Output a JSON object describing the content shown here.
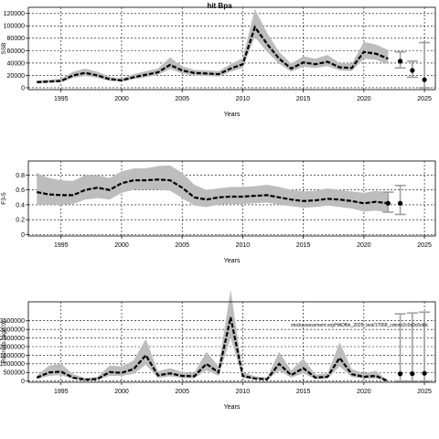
{
  "title": "hit Bpa",
  "annotation": "stockassessment.org/HADfbk_2025_test/17068_cdnmr2c0x0c6oblc",
  "chart_data": [
    {
      "type": "line",
      "ylabel": "SSB",
      "xlabel": "Years",
      "xlim": [
        1992.3,
        2025.9
      ],
      "ylim": [
        -3000,
        130000
      ],
      "xticks": [
        1995,
        2000,
        2005,
        2010,
        2015,
        2020,
        2025
      ],
      "yticks": [
        0,
        20000,
        40000,
        60000,
        80000,
        100000,
        120000
      ],
      "grid": true,
      "series": [
        {
          "x": [
            1993,
            1994,
            1995,
            1996,
            1997,
            1998,
            1999,
            2000,
            2001,
            2002,
            2003,
            2004,
            2005,
            2006,
            2007,
            2008,
            2009,
            2010,
            2011,
            2012,
            2013,
            2014,
            2015,
            2016,
            2017,
            2018,
            2019,
            2020,
            2021,
            2022
          ],
          "values": [
            9000,
            10000,
            11000,
            20000,
            24000,
            20000,
            14000,
            12000,
            17000,
            21000,
            25000,
            37000,
            28000,
            24000,
            23000,
            22000,
            31000,
            38000,
            98000,
            71000,
            47000,
            31000,
            41000,
            38000,
            42000,
            33000,
            32000,
            58000,
            55000,
            47000
          ],
          "lower": [
            7000,
            8000,
            9000,
            16000,
            19000,
            16000,
            11000,
            10000,
            14000,
            17000,
            21000,
            30000,
            23000,
            20000,
            19000,
            18000,
            26000,
            32000,
            82000,
            58000,
            39000,
            26000,
            34000,
            32000,
            35000,
            28000,
            27000,
            47000,
            45000,
            38000
          ],
          "upper": [
            12000,
            13000,
            15000,
            26000,
            31000,
            26000,
            18000,
            15000,
            22000,
            27000,
            31000,
            49000,
            35000,
            29000,
            28000,
            27000,
            38000,
            48000,
            127000,
            89000,
            58000,
            39000,
            51000,
            47000,
            53000,
            40000,
            39000,
            74000,
            70000,
            61000
          ]
        }
      ],
      "forecast": [
        {
          "x": 2023,
          "value": 43000,
          "lower": 32000,
          "upper": 58000
        },
        {
          "x": 2024,
          "value": 28000,
          "lower": 17000,
          "upper": 43000
        },
        {
          "x": 2025,
          "value": 13000,
          "lower": 0,
          "upper": 73000
        }
      ]
    },
    {
      "type": "line",
      "ylabel": "F3-5",
      "xlabel": "Years",
      "xlim": [
        1992.3,
        2025.9
      ],
      "ylim": [
        -0.02,
        0.99
      ],
      "xticks": [
        1995,
        2000,
        2005,
        2010,
        2015,
        2020,
        2025
      ],
      "yticks": [
        0.0,
        0.2,
        0.4,
        0.6,
        0.8
      ],
      "grid": true,
      "series": [
        {
          "x": [
            1993,
            1994,
            1995,
            1996,
            1997,
            1998,
            1999,
            2000,
            2001,
            2002,
            2003,
            2004,
            2005,
            2006,
            2007,
            2008,
            2009,
            2010,
            2011,
            2012,
            2013,
            2014,
            2015,
            2016,
            2017,
            2018,
            2019,
            2020,
            2021,
            2022
          ],
          "values": [
            0.57,
            0.54,
            0.53,
            0.53,
            0.6,
            0.63,
            0.6,
            0.69,
            0.73,
            0.73,
            0.74,
            0.73,
            0.63,
            0.5,
            0.47,
            0.5,
            0.51,
            0.51,
            0.52,
            0.53,
            0.5,
            0.47,
            0.45,
            0.46,
            0.48,
            0.47,
            0.45,
            0.42,
            0.44,
            0.42
          ],
          "lower": [
            0.4,
            0.4,
            0.4,
            0.41,
            0.47,
            0.49,
            0.47,
            0.56,
            0.6,
            0.6,
            0.6,
            0.59,
            0.49,
            0.39,
            0.37,
            0.4,
            0.41,
            0.41,
            0.42,
            0.43,
            0.4,
            0.38,
            0.36,
            0.37,
            0.39,
            0.37,
            0.35,
            0.31,
            0.32,
            0.3
          ],
          "upper": [
            0.83,
            0.76,
            0.73,
            0.72,
            0.8,
            0.8,
            0.76,
            0.85,
            0.89,
            0.89,
            0.92,
            0.93,
            0.83,
            0.67,
            0.6,
            0.62,
            0.64,
            0.64,
            0.65,
            0.67,
            0.64,
            0.6,
            0.58,
            0.59,
            0.62,
            0.6,
            0.58,
            0.56,
            0.59,
            0.57
          ]
        }
      ],
      "forecast": [
        {
          "x": 2022,
          "value": 0.42,
          "lower": 0.3,
          "upper": 0.57
        },
        {
          "x": 2023,
          "value": 0.42,
          "lower": 0.27,
          "upper": 0.66
        }
      ]
    },
    {
      "type": "line",
      "ylabel": "Recruits (age 0)",
      "xlabel": "Years",
      "xlim": [
        1992.3,
        2025.9
      ],
      "ylim": [
        -70000,
        4600000
      ],
      "xticks": [
        1995,
        2000,
        2005,
        2010,
        2015,
        2020,
        2025
      ],
      "yticks": [
        0,
        500000,
        1000000,
        1500000,
        2000000,
        2500000,
        3000000,
        3500000
      ],
      "ytick_labels": [
        "0",
        "500000",
        "1000000",
        "1500000",
        "2000000",
        "2500000",
        "3000000",
        "3500000"
      ],
      "grid": true,
      "series": [
        {
          "x": [
            1993,
            1994,
            1995,
            1996,
            1997,
            1998,
            1999,
            2000,
            2001,
            2002,
            2003,
            2004,
            2005,
            2006,
            2007,
            2008,
            2009,
            2010,
            2011,
            2012,
            2013,
            2014,
            2015,
            2016,
            2017,
            2018,
            2019,
            2020,
            2021,
            2022
          ],
          "values": [
            200000,
            500000,
            550000,
            200000,
            80000,
            120000,
            520000,
            480000,
            700000,
            1500000,
            330000,
            450000,
            300000,
            280000,
            1000000,
            500000,
            3700000,
            300000,
            150000,
            100000,
            1000000,
            350000,
            750000,
            200000,
            250000,
            1350000,
            400000,
            250000,
            300000,
            0
          ],
          "lower": [
            100000,
            300000,
            350000,
            100000,
            40000,
            60000,
            300000,
            300000,
            420000,
            950000,
            180000,
            280000,
            170000,
            160000,
            620000,
            300000,
            2500000,
            180000,
            80000,
            50000,
            600000,
            200000,
            450000,
            110000,
            140000,
            850000,
            230000,
            140000,
            150000,
            0
          ],
          "upper": [
            330000,
            900000,
            1000000,
            400000,
            180000,
            250000,
            900000,
            850000,
            1200000,
            2450000,
            560000,
            750000,
            520000,
            480000,
            1700000,
            850000,
            5300000,
            520000,
            280000,
            200000,
            1700000,
            620000,
            1300000,
            380000,
            450000,
            2250000,
            700000,
            450000,
            600000,
            0
          ]
        }
      ],
      "forecast": [
        {
          "x": 2023,
          "value": 420000,
          "lower": 0,
          "upper": 3900000
        },
        {
          "x": 2024,
          "value": 430000,
          "lower": 0,
          "upper": 3950000
        },
        {
          "x": 2025,
          "value": 450000,
          "lower": 0,
          "upper": 4000000
        }
      ]
    }
  ]
}
